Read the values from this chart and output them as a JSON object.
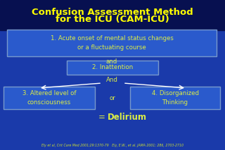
{
  "title_line1": "Confusion Assessment Method",
  "title_line2": "for the ICU (CAM-ICU)",
  "title_color": "#FFFF00",
  "bg_color": "#1a3aaa",
  "bg_gradient_top": "#0a1a6a",
  "box_edge_color": "#7799cc",
  "box_face_color": "#2a5acc",
  "text_color": "#DDEE44",
  "box1_text": "1. Acute onset of mental status changes\nor a fluctuating course",
  "box2_text": "2. Inattention",
  "box3_text": "3. Altered level of\nconsciousness",
  "box4_text": "4. Disorganized\nThinking",
  "label_and1": "and",
  "label_and2": "And",
  "label_or": "or",
  "delirium_prefix": "= ",
  "delirium_bold": "Delirium",
  "citation_text": "Ely et al, Crit Care Med 2001;29:1370-79   Ely, E.W., et al. JAMA 2001; 286, 2703-2710",
  "citation_color": "#CCDD33"
}
